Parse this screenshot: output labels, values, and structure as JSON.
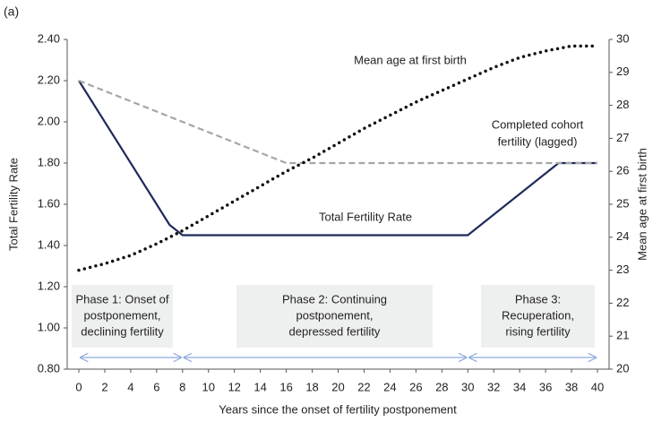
{
  "chart_data": {
    "type": "line",
    "panel_label": "(a)",
    "xlabel": "Years since the onset of fertility postponement",
    "ylabel": "Total Fertility Rate",
    "y2label": "Mean age at first birth",
    "xlim": [
      0,
      40
    ],
    "xticks": [
      0,
      2,
      4,
      6,
      8,
      10,
      12,
      14,
      16,
      18,
      20,
      22,
      24,
      26,
      28,
      30,
      32,
      34,
      36,
      38,
      40
    ],
    "ylim": [
      0.8,
      2.4
    ],
    "yticks": [
      {
        "value": 0.8,
        "label": "0.80"
      },
      {
        "value": 1.0,
        "label": "1.00"
      },
      {
        "value": 1.2,
        "label": "1.20"
      },
      {
        "value": 1.4,
        "label": "1.40"
      },
      {
        "value": 1.6,
        "label": "1.60"
      },
      {
        "value": 1.8,
        "label": "1.80"
      },
      {
        "value": 2.0,
        "label": "2.00"
      },
      {
        "value": 2.2,
        "label": "2.20"
      },
      {
        "value": 2.4,
        "label": "2.40"
      }
    ],
    "y2lim": [
      20,
      30
    ],
    "y2ticks": [
      20,
      21,
      22,
      23,
      24,
      25,
      26,
      27,
      28,
      29,
      30
    ],
    "series": [
      {
        "color": "#1f2a5a",
        "style": "solid",
        "x": [
          0,
          7,
          8,
          30,
          37,
          40
        ],
        "values": [
          2.2,
          1.5,
          1.45,
          1.45,
          1.8,
          1.8
        ]
      },
      {
        "color": "#a6a6a6",
        "style": "dashed",
        "x": [
          0,
          16,
          40
        ],
        "values": [
          2.2,
          1.8,
          1.8
        ]
      },
      {
        "color": "#111111",
        "style": "dotted",
        "axis": "y2",
        "x": [
          0,
          2,
          4,
          6,
          8,
          10,
          12,
          14,
          16,
          18,
          20,
          22,
          24,
          26,
          28,
          30,
          32,
          34,
          36,
          38,
          40
        ],
        "values": [
          23.0,
          23.2,
          23.45,
          23.8,
          24.2,
          24.65,
          25.1,
          25.55,
          26.0,
          26.4,
          26.85,
          27.3,
          27.7,
          28.1,
          28.45,
          28.8,
          29.15,
          29.45,
          29.65,
          29.8,
          29.8
        ]
      }
    ],
    "annotations": [
      {
        "lines": [
          "Mean age at first birth"
        ]
      },
      {
        "lines": [
          "Completed cohort",
          "fertility (lagged)"
        ]
      },
      {
        "lines": [
          "Total Fertility Rate"
        ]
      }
    ],
    "phases": [
      {
        "lines": [
          "Phase 1: Onset of",
          "postponement,",
          "declining fertility"
        ],
        "range": [
          0,
          8
        ]
      },
      {
        "lines": [
          "Phase 2: Continuing",
          "postponement,",
          "depressed fertility"
        ],
        "range": [
          8,
          30
        ]
      },
      {
        "lines": [
          "Phase 3:",
          "Recuperation,",
          "rising  fertility"
        ],
        "range": [
          30,
          40
        ]
      }
    ]
  }
}
